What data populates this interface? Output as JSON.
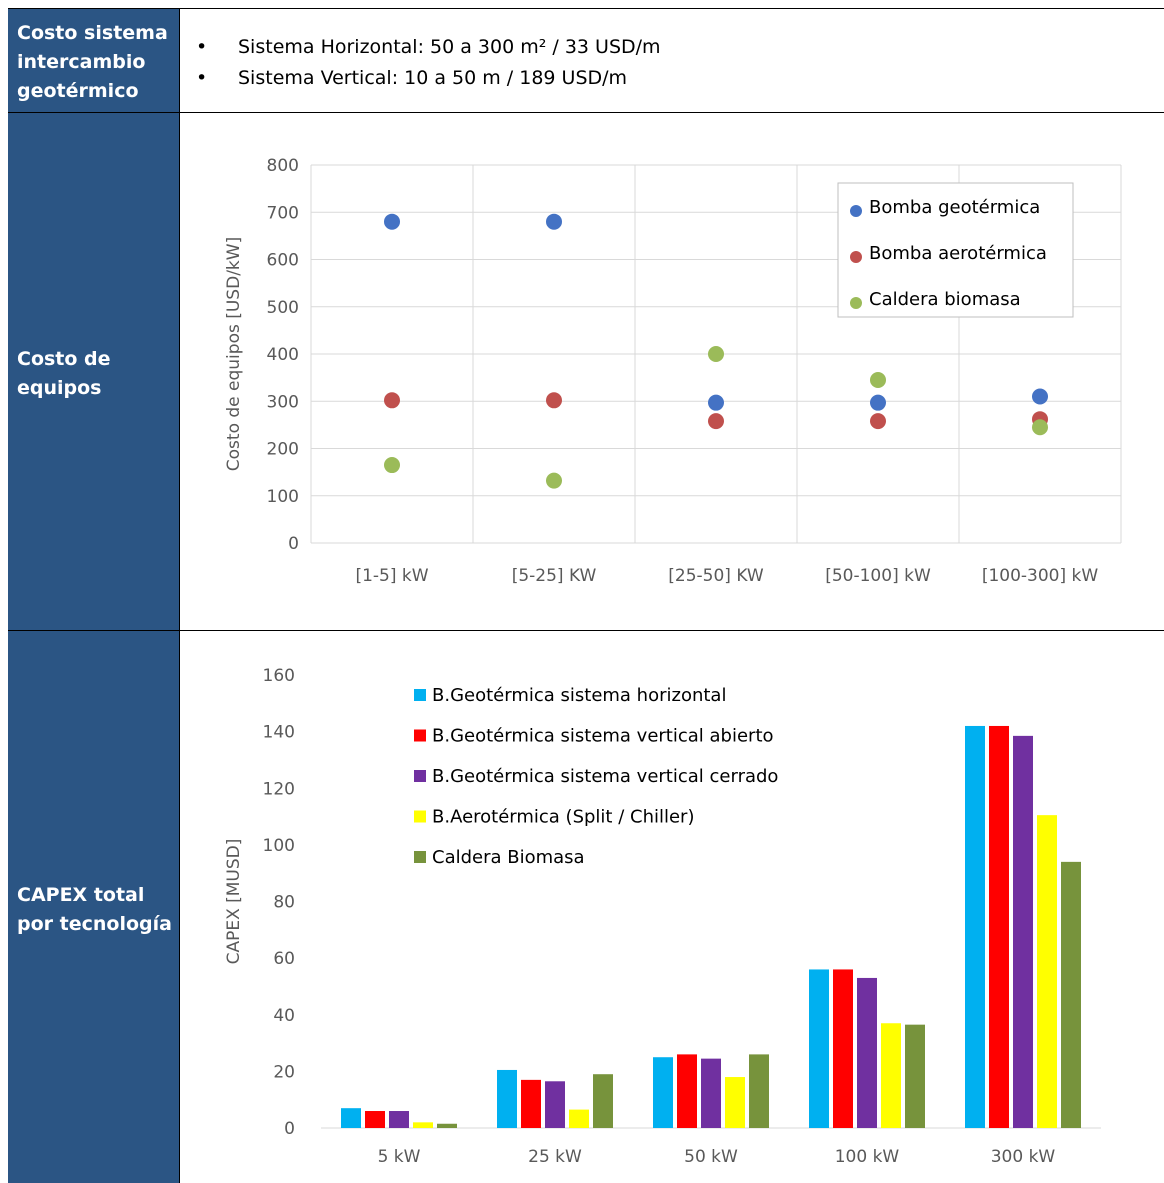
{
  "rows": {
    "geo": {
      "label": [
        "Costo sistema",
        "intercambio",
        "geotérmico"
      ],
      "bullets": [
        "Sistema Horizontal: 50 a 300 m² / 33 USD/m",
        "Sistema Vertical: 10 a 50 m / 189 USD/m"
      ]
    },
    "equipos": {
      "label": [
        "Costo de",
        "equipos"
      ]
    },
    "capex": {
      "label": [
        "CAPEX total",
        "por tecnología"
      ]
    }
  },
  "colors": {
    "label_bg": "#2b5584",
    "scatter": [
      "#4472c4",
      "#c0504d",
      "#9bbb59"
    ],
    "bars": [
      "#00b0f0",
      "#ff0000",
      "#7030a0",
      "#ffff00",
      "#77933c"
    ]
  },
  "chart_data": [
    {
      "type": "scatter",
      "categories": [
        "[1-5] kW",
        "[5-25] KW",
        "[25-50] KW",
        "[50-100] kW",
        "[100-300] kW"
      ],
      "series": [
        {
          "name": "Bomba geotérmica",
          "values": [
            680,
            680,
            297,
            297,
            310
          ]
        },
        {
          "name": "Bomba aerotérmica",
          "values": [
            302,
            302,
            258,
            258,
            262
          ]
        },
        {
          "name": "Caldera biomasa",
          "values": [
            165,
            132,
            400,
            345,
            245
          ]
        }
      ],
      "ylabel": "Costo de equipos [USD/kW]",
      "ylim": [
        0,
        800
      ],
      "yticks": [
        0,
        100,
        200,
        300,
        400,
        500,
        600,
        700,
        800
      ],
      "grid": true,
      "legend": "top-right"
    },
    {
      "type": "bar",
      "categories": [
        "5 kW",
        "25 kW",
        "50 kW",
        "100 kW",
        "300 kW"
      ],
      "series": [
        {
          "name": "B.Geotérmica sistema horizontal",
          "values": [
            7,
            20.5,
            25,
            56,
            142
          ]
        },
        {
          "name": "B.Geotérmica sistema vertical abierto",
          "values": [
            6,
            17,
            26,
            56,
            142
          ]
        },
        {
          "name": "B.Geotérmica sistema vertical cerrado",
          "values": [
            6,
            16.5,
            24.5,
            53,
            138.5
          ]
        },
        {
          "name": "B.Aerotérmica (Split / Chiller)",
          "values": [
            2,
            6.5,
            18,
            37,
            110.5
          ]
        },
        {
          "name": "Caldera Biomasa",
          "values": [
            1.5,
            19,
            26,
            36.5,
            94
          ]
        }
      ],
      "ylabel": "CAPEX [MUSD]",
      "ylim": [
        0,
        160
      ],
      "yticks": [
        0,
        20,
        40,
        60,
        80,
        100,
        120,
        140,
        160
      ],
      "grid": false,
      "legend": "top-left"
    }
  ]
}
